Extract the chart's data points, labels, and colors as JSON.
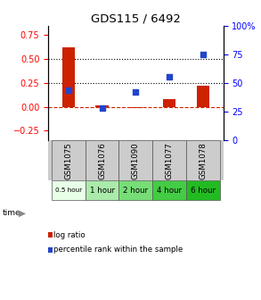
{
  "title": "GDS115 / 6492",
  "samples": [
    "GSM1075",
    "GSM1076",
    "GSM1090",
    "GSM1077",
    "GSM1078"
  ],
  "time_labels": [
    "0.5 hour",
    "1 hour",
    "2 hour",
    "4 hour",
    "6 hour"
  ],
  "time_colors": [
    "#e8ffe8",
    "#aaeaaa",
    "#77dd77",
    "#44cc44",
    "#22bb22"
  ],
  "log_ratio": [
    0.62,
    0.02,
    -0.01,
    0.08,
    0.22
  ],
  "percentile_rank_pct": [
    44,
    28,
    42,
    55,
    75
  ],
  "bar_color": "#cc2200",
  "dot_color": "#2244cc",
  "ylim_left": [
    -0.35,
    0.85
  ],
  "ylim_right": [
    0,
    100
  ],
  "yticks_left": [
    -0.25,
    0.0,
    0.25,
    0.5,
    0.75
  ],
  "yticks_right": [
    0,
    25,
    50,
    75,
    100
  ],
  "hline_y": [
    0.25,
    0.5
  ],
  "background_color": "#ffffff",
  "label_bg": "#cccccc"
}
